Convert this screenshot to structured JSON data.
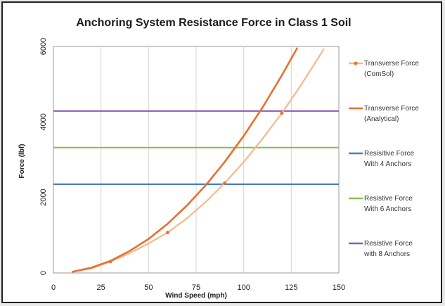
{
  "chart_data": {
    "type": "line",
    "title": "Anchoring System Resistance Force in Class 1 Soil",
    "xlabel": "Wind Speed (mph)",
    "ylabel": "Force (lbf)",
    "xlim": [
      0,
      150
    ],
    "ylim": [
      0,
      6000
    ],
    "x_ticks": [
      "0",
      "25",
      "50",
      "75",
      "100",
      "125",
      "150"
    ],
    "y_ticks": [
      "0",
      "2000",
      "4000",
      "6000"
    ],
    "grid": "vertical",
    "legend_position": "right",
    "series": [
      {
        "name": "Transverse Force (ComSol)",
        "legend_lines": [
          "Transverse Force",
          "(ComSol)"
        ],
        "color": "#f5b98a",
        "marker": "dot",
        "x": [
          10,
          20,
          30,
          40,
          50,
          60,
          70,
          80,
          90,
          100,
          110,
          120,
          130,
          140,
          142
        ],
        "y": [
          30,
          120,
          300,
          520,
          780,
          1070,
          1440,
          1880,
          2380,
          2940,
          3560,
          4230,
          4970,
          5760,
          5930
        ]
      },
      {
        "name": "Transverse Force (Analytical)",
        "legend_lines": [
          "Transverse Force",
          "(Analytical)"
        ],
        "color": "#e8702e",
        "marker": "none",
        "x": [
          10,
          20,
          30,
          40,
          50,
          60,
          70,
          80,
          90,
          100,
          110,
          120,
          128
        ],
        "y": [
          30,
          140,
          320,
          580,
          900,
          1300,
          1780,
          2320,
          2940,
          3630,
          4390,
          5230,
          5950
        ]
      },
      {
        "name": "Resisitive Force With 4 Anchors",
        "legend_lines": [
          "Resisitive Force",
          "With 4 Anchors"
        ],
        "color": "#4a7fc1",
        "marker": "none",
        "x": [
          0,
          150
        ],
        "y": [
          2350,
          2350
        ]
      },
      {
        "name": "Resistive Force With 6 Anchors",
        "legend_lines": [
          "Resistive Force",
          "With 6 Anchors"
        ],
        "color": "#8dbf4a",
        "marker": "none",
        "x": [
          0,
          150
        ],
        "y": [
          3320,
          3320
        ]
      },
      {
        "name": "Resistive Force with 8 Anchors",
        "legend_lines": [
          "Resistive Force",
          "with 8 Anchors"
        ],
        "color": "#8b5fb3",
        "marker": "none",
        "x": [
          0,
          150
        ],
        "y": [
          4290,
          4290
        ]
      }
    ],
    "comsol_markers": {
      "x": [
        30,
        60,
        90,
        120
      ],
      "y": [
        300,
        1070,
        2380,
        4230
      ]
    }
  }
}
